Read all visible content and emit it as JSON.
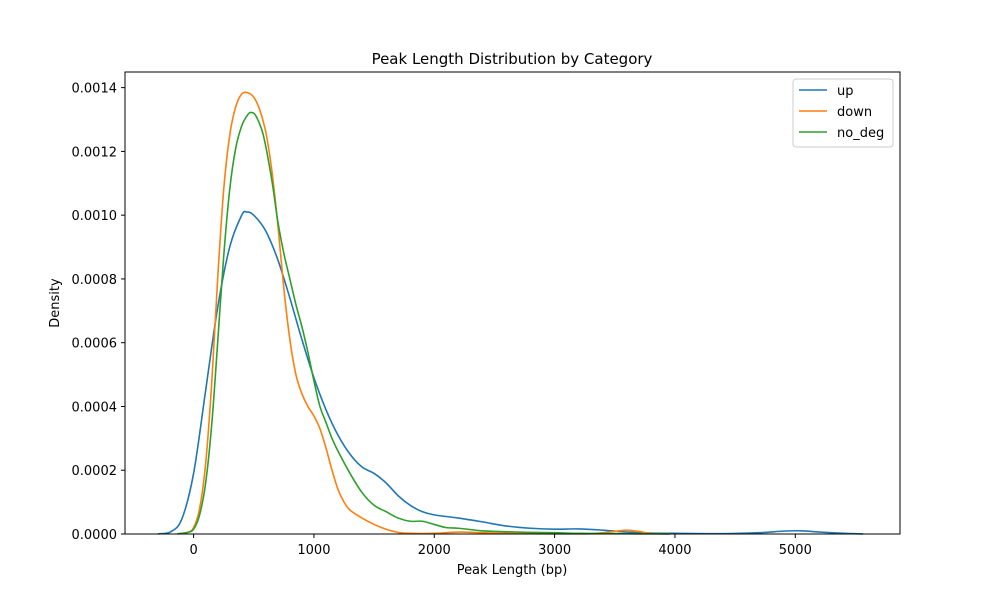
{
  "chart_data": {
    "type": "line",
    "title": "Peak Length Distribution by Category",
    "xlabel": "Peak Length (bp)",
    "ylabel": "Density",
    "xlim": [
      -570,
      5870
    ],
    "ylim": [
      0,
      0.001449
    ],
    "xticks": [
      0,
      1000,
      2000,
      3000,
      4000,
      5000
    ],
    "xtick_labels": [
      "0",
      "1000",
      "2000",
      "3000",
      "4000",
      "5000"
    ],
    "yticks": [
      0,
      0.0002,
      0.0004,
      0.0006,
      0.0008,
      0.001,
      0.0012,
      0.0014
    ],
    "ytick_labels": [
      "0.0000",
      "0.0002",
      "0.0004",
      "0.0006",
      "0.0008",
      "0.0010",
      "0.0012",
      "0.0014"
    ],
    "grid": false,
    "legend_position": "top-right",
    "series": [
      {
        "name": "up",
        "color": "#1f77b4",
        "points": [
          [
            -290,
            5e-07
          ],
          [
            -200,
            5e-06
          ],
          [
            -100,
            4.5e-05
          ],
          [
            0,
            0.00019
          ],
          [
            100,
            0.00045
          ],
          [
            200,
            0.00071
          ],
          [
            300,
            0.0009
          ],
          [
            400,
            0.001
          ],
          [
            440,
            0.00101
          ],
          [
            500,
            0.001
          ],
          [
            600,
            0.00095
          ],
          [
            700,
            0.00086
          ],
          [
            800,
            0.00074
          ],
          [
            900,
            0.00061
          ],
          [
            1000,
            0.00049
          ],
          [
            1100,
            0.00039
          ],
          [
            1200,
            0.00031
          ],
          [
            1300,
            0.00025
          ],
          [
            1400,
            0.00021
          ],
          [
            1500,
            0.00019
          ],
          [
            1600,
            0.00016
          ],
          [
            1700,
            0.00012
          ],
          [
            1800,
            9e-05
          ],
          [
            1900,
            7e-05
          ],
          [
            2000,
            6e-05
          ],
          [
            2200,
            5e-05
          ],
          [
            2400,
            3.8e-05
          ],
          [
            2600,
            2.5e-05
          ],
          [
            2800,
            1.8e-05
          ],
          [
            3000,
            1.5e-05
          ],
          [
            3200,
            1.6e-05
          ],
          [
            3400,
            1.2e-05
          ],
          [
            3600,
            6e-06
          ],
          [
            3800,
            3e-06
          ],
          [
            4000,
            2e-06
          ],
          [
            4400,
            1e-06
          ],
          [
            4700,
            4e-06
          ],
          [
            4900,
            9e-06
          ],
          [
            5050,
            1e-05
          ],
          [
            5200,
            6e-06
          ],
          [
            5400,
            2e-06
          ],
          [
            5560,
            3e-07
          ]
        ]
      },
      {
        "name": "down",
        "color": "#ff7f0e",
        "points": [
          [
            -130,
            5e-07
          ],
          [
            -50,
            5e-06
          ],
          [
            0,
            2e-05
          ],
          [
            50,
            8e-05
          ],
          [
            100,
            0.00022
          ],
          [
            150,
            0.00047
          ],
          [
            200,
            0.0008
          ],
          [
            250,
            0.00108
          ],
          [
            300,
            0.00125
          ],
          [
            350,
            0.00134
          ],
          [
            400,
            0.00138
          ],
          [
            450,
            0.001384
          ],
          [
            500,
            0.00137
          ],
          [
            550,
            0.00133
          ],
          [
            600,
            0.00126
          ],
          [
            650,
            0.00114
          ],
          [
            700,
            0.00097
          ],
          [
            750,
            0.00077
          ],
          [
            800,
            0.00061
          ],
          [
            850,
            0.0005
          ],
          [
            900,
            0.00044
          ],
          [
            950,
            0.0004
          ],
          [
            1000,
            0.00037
          ],
          [
            1050,
            0.00033
          ],
          [
            1100,
            0.00027
          ],
          [
            1150,
            0.0002
          ],
          [
            1200,
            0.00014
          ],
          [
            1250,
            0.0001
          ],
          [
            1300,
            7.5e-05
          ],
          [
            1400,
            5e-05
          ],
          [
            1500,
            3e-05
          ],
          [
            1600,
            1.5e-05
          ],
          [
            1700,
            5e-06
          ],
          [
            1800,
            2e-06
          ],
          [
            2000,
            2e-06
          ],
          [
            2200,
            6e-06
          ],
          [
            2400,
            4e-06
          ],
          [
            2600,
            2e-06
          ],
          [
            3000,
            5e-07
          ],
          [
            3300,
            1e-06
          ],
          [
            3500,
            8e-06
          ],
          [
            3600,
            1.2e-05
          ],
          [
            3700,
            8e-06
          ],
          [
            3800,
            2e-06
          ],
          [
            3950,
            5e-07
          ]
        ]
      },
      {
        "name": "no_deg",
        "color": "#2ca02c",
        "points": [
          [
            -130,
            5e-07
          ],
          [
            -50,
            5e-06
          ],
          [
            0,
            1.5e-05
          ],
          [
            50,
            6e-05
          ],
          [
            100,
            0.00016
          ],
          [
            150,
            0.00034
          ],
          [
            200,
            0.0006
          ],
          [
            250,
            0.00087
          ],
          [
            300,
            0.00108
          ],
          [
            350,
            0.00121
          ],
          [
            400,
            0.00128
          ],
          [
            450,
            0.001315
          ],
          [
            480,
            0.001322
          ],
          [
            520,
            0.00131
          ],
          [
            580,
            0.00125
          ],
          [
            650,
            0.00111
          ],
          [
            700,
            0.00098
          ],
          [
            750,
            0.00088
          ],
          [
            800,
            0.0008
          ],
          [
            850,
            0.00072
          ],
          [
            900,
            0.00065
          ],
          [
            950,
            0.00057
          ],
          [
            1000,
            0.00048
          ],
          [
            1050,
            0.0004
          ],
          [
            1100,
            0.00035
          ],
          [
            1150,
            0.0003
          ],
          [
            1200,
            0.00026
          ],
          [
            1300,
            0.00019
          ],
          [
            1400,
            0.00013
          ],
          [
            1500,
            9e-05
          ],
          [
            1600,
            7e-05
          ],
          [
            1700,
            5e-05
          ],
          [
            1800,
            4e-05
          ],
          [
            1900,
            4e-05
          ],
          [
            2000,
            3e-05
          ],
          [
            2100,
            2e-05
          ],
          [
            2200,
            1.8e-05
          ],
          [
            2400,
            1e-05
          ],
          [
            2600,
            7e-06
          ],
          [
            2800,
            5e-06
          ],
          [
            3000,
            4e-06
          ],
          [
            3200,
            2e-06
          ],
          [
            3500,
            1e-06
          ],
          [
            3800,
            5e-07
          ],
          [
            3950,
            2e-07
          ]
        ]
      }
    ]
  }
}
